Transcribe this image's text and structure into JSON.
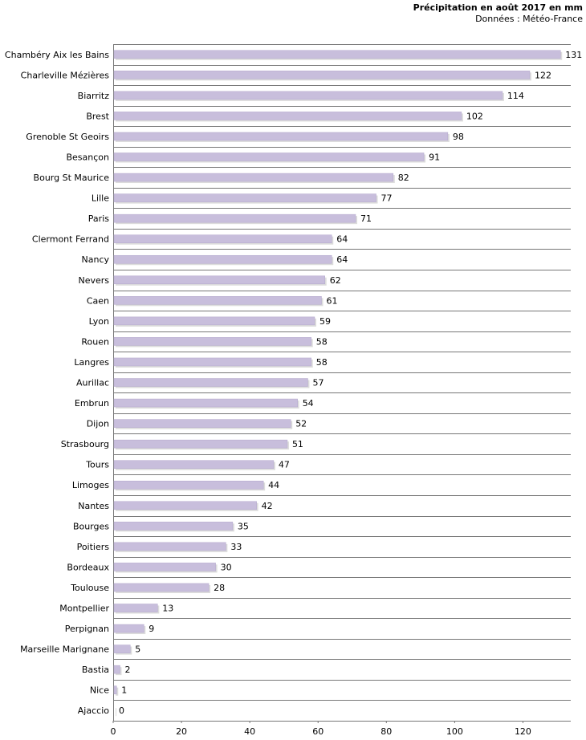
{
  "chart_data": {
    "type": "bar",
    "orientation": "horizontal",
    "title": "Précipitation en août 2017 en mm",
    "subtitle": "Données : Météo-France",
    "categories": [
      "Chambéry Aix les Bains",
      "Charleville Mézières",
      "Biarritz",
      "Brest",
      "Grenoble St Geoirs",
      "Besançon",
      "Bourg St Maurice",
      "Lille",
      "Paris",
      "Clermont Ferrand",
      "Nancy",
      "Nevers",
      "Caen",
      "Lyon",
      "Rouen",
      "Langres",
      "Aurillac",
      "Embrun",
      "Dijon",
      "Strasbourg",
      "Tours",
      "Limoges",
      "Nantes",
      "Bourges",
      "Poitiers",
      "Bordeaux",
      "Toulouse",
      "Montpellier",
      "Perpignan",
      "Marseille Marignane",
      "Bastia",
      "Nice",
      "Ajaccio"
    ],
    "values": [
      131,
      122,
      114,
      102,
      98,
      91,
      82,
      77,
      71,
      64,
      64,
      62,
      61,
      59,
      58,
      58,
      57,
      54,
      52,
      51,
      47,
      44,
      42,
      35,
      33,
      30,
      28,
      13,
      9,
      5,
      2,
      1,
      0
    ],
    "xlim": [
      0,
      134
    ],
    "xticks": [
      0,
      20,
      40,
      60,
      80,
      100,
      120
    ],
    "grid": "horizontal",
    "bar_color": "#c8bedc",
    "bar_shadow_color": "#dcdcdc",
    "grid_color": "#777777"
  }
}
